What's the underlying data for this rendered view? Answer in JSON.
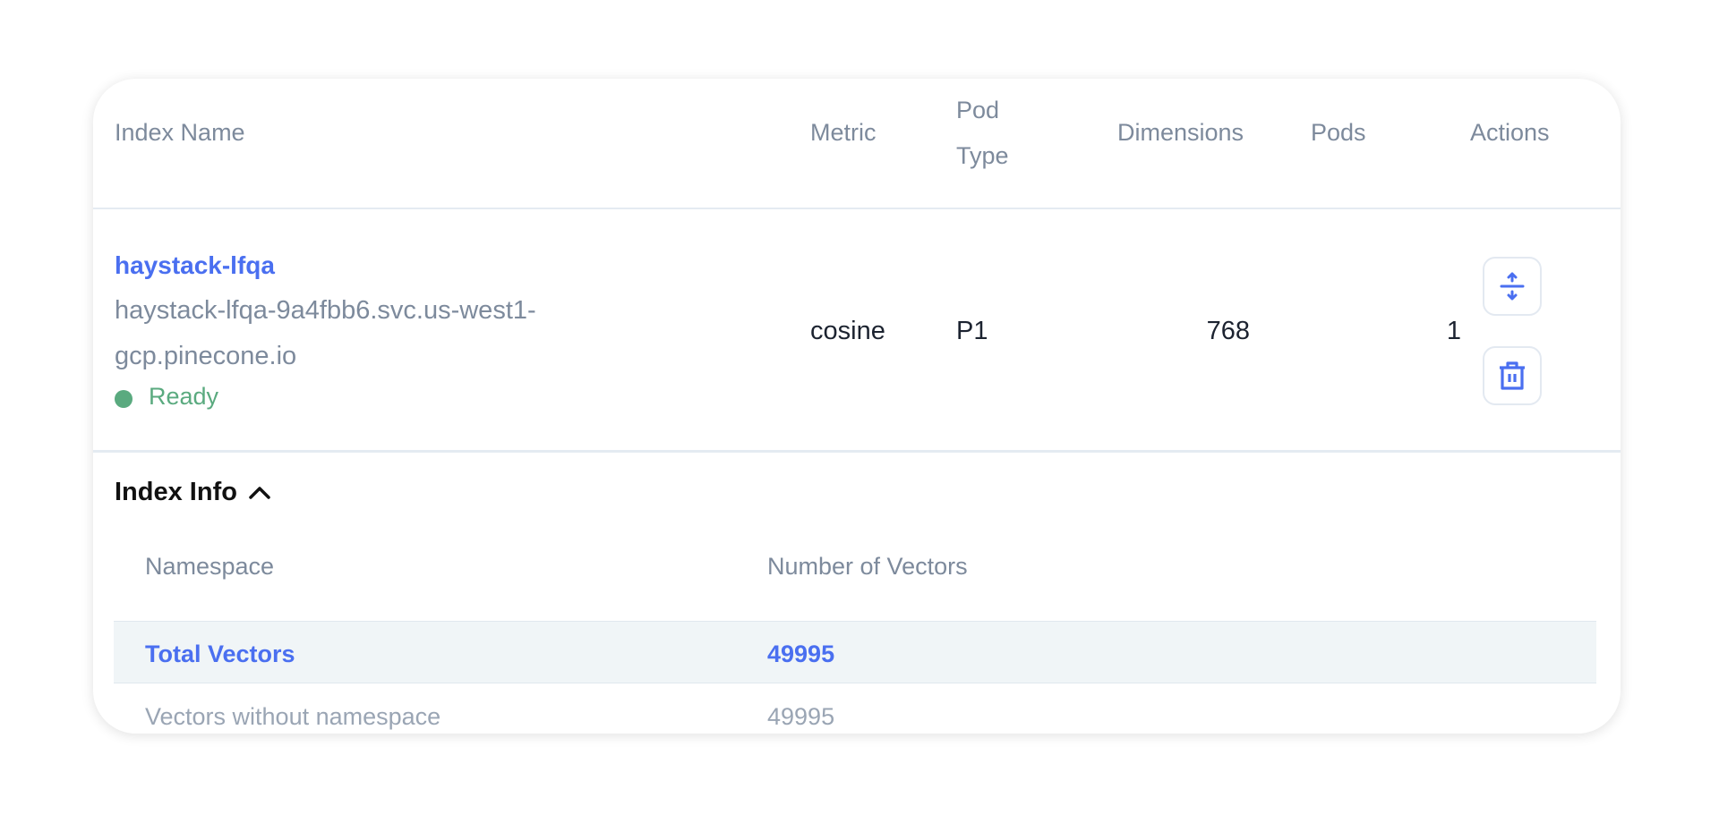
{
  "table": {
    "headers": {
      "index_name": "Index Name",
      "metric": "Metric",
      "pod_type_line1": "Pod",
      "pod_type_line2": "Type",
      "dimensions": "Dimensions",
      "pods": "Pods",
      "actions": "Actions"
    },
    "row": {
      "name": "haystack-lfqa",
      "host_line1": "haystack-lfqa-9a4fbb6.svc.us-west1-",
      "host_line2": "gcp.pinecone.io",
      "status": "Ready",
      "status_color": "#5aaa7f",
      "metric": "cosine",
      "pod_type": "P1",
      "dimensions": "768",
      "pods": "1"
    },
    "action_icons": [
      "expand-collapse-icon",
      "trash-icon"
    ]
  },
  "index_info": {
    "title": "Index Info",
    "headers": {
      "namespace": "Namespace",
      "vectors": "Number of Vectors"
    },
    "rows": [
      {
        "namespace": "Total Vectors",
        "vectors": "49995"
      },
      {
        "namespace": "Vectors without namespace",
        "vectors": "49995"
      }
    ]
  },
  "colors": {
    "accent": "#4a6ff0",
    "muted": "#7d8a9c"
  }
}
